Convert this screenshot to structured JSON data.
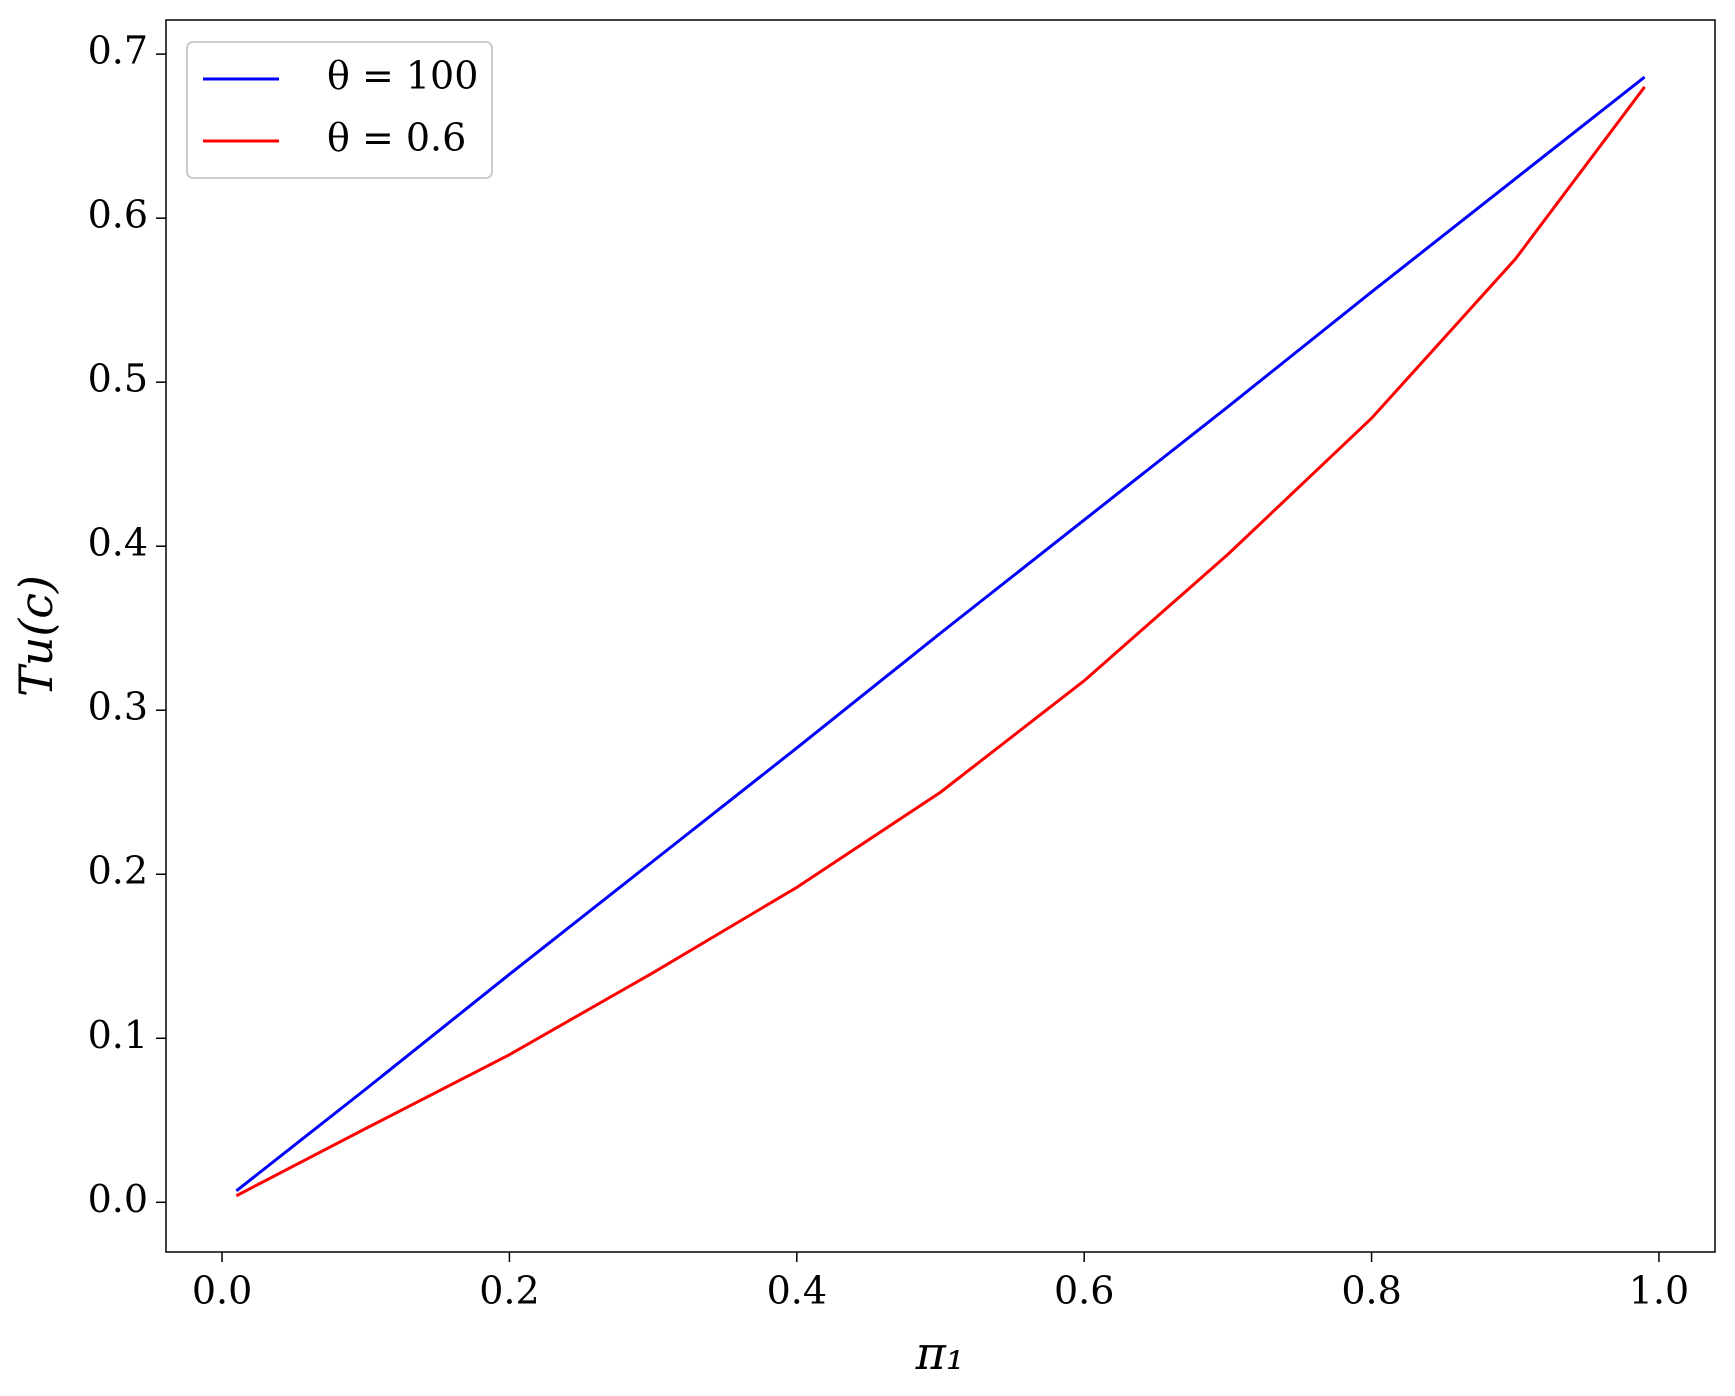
{
  "chart_data": {
    "type": "line",
    "xlabel": "π₁",
    "ylabel": "Tu(c)",
    "x": [
      0.01,
      0.1,
      0.2,
      0.3,
      0.4,
      0.5,
      0.6,
      0.7,
      0.8,
      0.9,
      0.99
    ],
    "series": [
      {
        "name": "θ = 100",
        "color": "#0000ff",
        "values": [
          0.007,
          0.069,
          0.139,
          0.208,
          0.277,
          0.347,
          0.416,
          0.485,
          0.555,
          0.624,
          0.686
        ]
      },
      {
        "name": "θ = 0.6",
        "color": "#ff0000",
        "values": [
          0.004,
          0.045,
          0.09,
          0.14,
          0.192,
          0.25,
          0.318,
          0.395,
          0.478,
          0.575,
          0.68
        ]
      }
    ],
    "xlim": [
      -0.039,
      1.039
    ],
    "ylim": [
      -0.0303,
      0.7208
    ],
    "xticks": [
      {
        "value": 0,
        "label": "0.0"
      },
      0.2,
      0.4,
      0.6,
      0.8,
      {
        "value": 1,
        "label": "1.0"
      }
    ],
    "yticks": [
      {
        "value": 0,
        "label": "0.0"
      },
      0.1,
      0.2,
      0.3,
      0.4,
      0.5,
      0.6,
      0.7
    ],
    "grid": false,
    "legend": "upper left"
  }
}
